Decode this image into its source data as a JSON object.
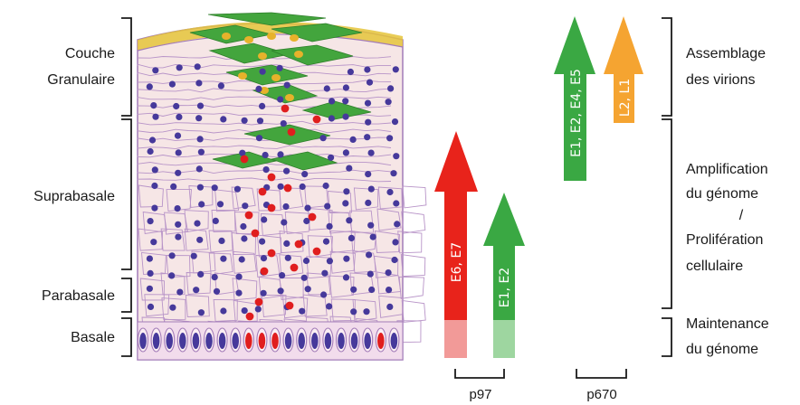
{
  "left_labels": {
    "granular_line1": "Couche",
    "granular_line2": "Granulaire",
    "suprabasal": "Suprabasale",
    "parabasal": "Parabasale",
    "basal": "Basale"
  },
  "right_labels": {
    "assembly_line1": "Assemblage",
    "assembly_line2": "des virions",
    "amplification_line1": "Amplification",
    "amplification_line2": "du génome",
    "amplification_line3": "/",
    "amplification_line4": "Prolifération",
    "amplification_line5": "cellulaire",
    "maintenance_line1": "Maintenance",
    "maintenance_line2": "du génome"
  },
  "arrows": [
    {
      "label": "E6, E7",
      "color": "#e8231b",
      "light_color": "#f29a98"
    },
    {
      "label": "E1, E2",
      "color": "#3aa843",
      "light_color": "#9ed6a0"
    },
    {
      "label": "E1, E2, E4, E5",
      "color": "#3aa843"
    },
    {
      "label": "L2, L1",
      "color": "#f5a431"
    }
  ],
  "promoters": {
    "p97": "p97",
    "p670": "p670"
  },
  "colors": {
    "cell_fill": "#f6e6e6",
    "cell_border": "#a27bb8",
    "nucleus": "#46399b",
    "infected_nucleus": "#e01e1e",
    "infected_cell": "#43a53d",
    "granule": "#e7b22b"
  }
}
